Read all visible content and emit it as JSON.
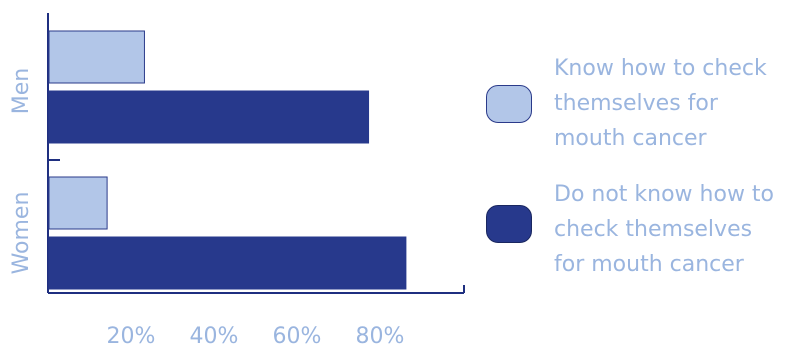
{
  "chart_data": {
    "type": "bar",
    "orientation": "horizontal",
    "categories": [
      "Men",
      "Women"
    ],
    "series": [
      {
        "name": "Know how to check themselves for mouth cancer",
        "values": [
          23,
          14
        ],
        "color": "#b2c6e8"
      },
      {
        "name": "Do not know how to check themselves for mouth cancer",
        "values": [
          77,
          86
        ],
        "color": "#27398c"
      }
    ],
    "xticks": [
      "20%",
      "40%",
      "60%",
      "80%"
    ],
    "xlim": [
      0,
      100
    ],
    "grid": false,
    "legend_position": "right"
  },
  "colors": {
    "text": "#9ab5df",
    "axis": "#1f2f80",
    "light_bar_border": "#2a3a8a"
  }
}
